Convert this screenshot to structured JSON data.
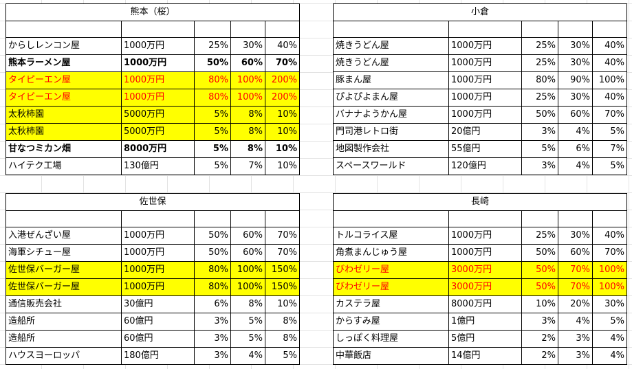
{
  "tables": {
    "kumamoto": {
      "title": "熊本（桜）",
      "rows": [
        {
          "name": "からしレンコン屋",
          "price": "1000万円",
          "p1": "25%",
          "p2": "30%",
          "p3": "40%"
        },
        {
          "name": "熊本ラーメン屋",
          "price": "1000万円",
          "p1": "50%",
          "p2": "60%",
          "p3": "70%"
        },
        {
          "name": "タイピーエン屋",
          "price": "1000万円",
          "p1": "80%",
          "p2": "100%",
          "p3": "200%"
        },
        {
          "name": "タイピーエン屋",
          "price": "1000万円",
          "p1": "80%",
          "p2": "100%",
          "p3": "200%"
        },
        {
          "name": "太秋柿園",
          "price": "5000万円",
          "p1": "5%",
          "p2": "8%",
          "p3": "10%"
        },
        {
          "name": "太秋柿園",
          "price": "5000万円",
          "p1": "5%",
          "p2": "8%",
          "p3": "10%"
        },
        {
          "name": "甘なつミカン畑",
          "price": "8000万円",
          "p1": "5%",
          "p2": "8%",
          "p3": "10%"
        },
        {
          "name": "ハイテク工場",
          "price": "130億円",
          "p1": "5%",
          "p2": "7%",
          "p3": "10%"
        }
      ]
    },
    "kokura": {
      "title": "小倉",
      "rows": [
        {
          "name": "焼きうどん屋",
          "price": "1000万円",
          "p1": "25%",
          "p2": "30%",
          "p3": "40%"
        },
        {
          "name": "焼きうどん屋",
          "price": "1000万円",
          "p1": "25%",
          "p2": "30%",
          "p3": "40%"
        },
        {
          "name": "豚まん屋",
          "price": "1000万円",
          "p1": "80%",
          "p2": "90%",
          "p3": "100%"
        },
        {
          "name": "ぴよぴよまん屋",
          "price": "1000万円",
          "p1": "25%",
          "p2": "30%",
          "p3": "40%"
        },
        {
          "name": "バナナようかん屋",
          "price": "1000万円",
          "p1": "50%",
          "p2": "60%",
          "p3": "70%"
        },
        {
          "name": "門司港レトロ街",
          "price": "20億円",
          "p1": "3%",
          "p2": "4%",
          "p3": "5%"
        },
        {
          "name": "地図製作会社",
          "price": "55億円",
          "p1": "5%",
          "p2": "6%",
          "p3": "7%"
        },
        {
          "name": "スペースワールド",
          "price": "120億円",
          "p1": "3%",
          "p2": "4%",
          "p3": "5%"
        }
      ]
    },
    "sasebo": {
      "title": "佐世保",
      "rows": [
        {
          "name": "入港ぜんざい屋",
          "price": "1000万円",
          "p1": "50%",
          "p2": "60%",
          "p3": "70%"
        },
        {
          "name": "海軍シチュー屋",
          "price": "1000万円",
          "p1": "50%",
          "p2": "60%",
          "p3": "70%"
        },
        {
          "name": "佐世保バーガー屋",
          "price": "1000万円",
          "p1": "80%",
          "p2": "100%",
          "p3": "150%"
        },
        {
          "name": "佐世保バーガー屋",
          "price": "1000万円",
          "p1": "80%",
          "p2": "100%",
          "p3": "150%"
        },
        {
          "name": "通信販売会社",
          "price": "30億円",
          "p1": "6%",
          "p2": "8%",
          "p3": "10%"
        },
        {
          "name": "造船所",
          "price": "60億円",
          "p1": "3%",
          "p2": "5%",
          "p3": "8%"
        },
        {
          "name": "造船所",
          "price": "60億円",
          "p1": "3%",
          "p2": "5%",
          "p3": "8%"
        },
        {
          "name": "ハウスヨーロッパ",
          "price": "180億円",
          "p1": "3%",
          "p2": "4%",
          "p3": "5%"
        }
      ]
    },
    "nagasaki": {
      "title": "長崎",
      "rows": [
        {
          "name": "トルコライス屋",
          "price": "1000万円",
          "p1": "25%",
          "p2": "30%",
          "p3": "40%"
        },
        {
          "name": "角煮まんじゅう屋",
          "price": "1000万円",
          "p1": "50%",
          "p2": "60%",
          "p3": "70%"
        },
        {
          "name": "びわゼリー屋",
          "price": "3000万円",
          "p1": "50%",
          "p2": "70%",
          "p3": "100%"
        },
        {
          "name": "びわゼリー屋",
          "price": "3000万円",
          "p1": "50%",
          "p2": "70%",
          "p3": "100%"
        },
        {
          "name": "カステラ屋",
          "price": "8000万円",
          "p1": "10%",
          "p2": "20%",
          "p3": "30%"
        },
        {
          "name": "からすみ屋",
          "price": "1億円",
          "p1": "3%",
          "p2": "4%",
          "p3": "5%"
        },
        {
          "name": "しっぽく料理屋",
          "price": "5億円",
          "p1": "2%",
          "p2": "3%",
          "p3": "4%"
        },
        {
          "name": "中華飯店",
          "price": "14億円",
          "p1": "2%",
          "p2": "3%",
          "p3": "4%"
        }
      ]
    }
  },
  "colors": {
    "highlight": "#ffff00",
    "red_text": "#ff0000",
    "grid_line": "#e3e3e3"
  }
}
